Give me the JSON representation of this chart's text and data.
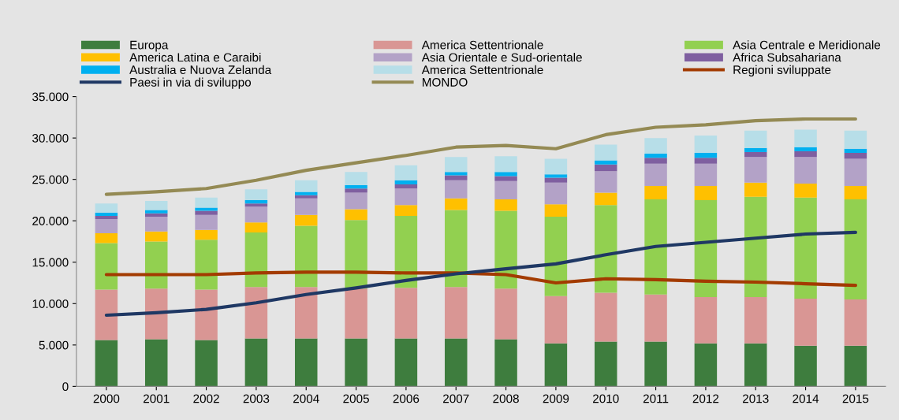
{
  "chart_data": {
    "type": "bar",
    "stacked": true,
    "legend": "top",
    "grid": false,
    "categories": [
      "2000",
      "2001",
      "2002",
      "2003",
      "2004",
      "2005",
      "2006",
      "2007",
      "2008",
      "2009",
      "2010",
      "2011",
      "2012",
      "2013",
      "2014",
      "2015"
    ],
    "ylim": [
      0,
      35000
    ],
    "yticks": [
      0,
      {
        "value": 5000,
        "label": "5.000"
      },
      {
        "value": 10000,
        "label": "10.000"
      },
      {
        "value": 15000,
        "label": "15.000"
      },
      {
        "value": 20000,
        "label": "20.000"
      },
      {
        "value": 25000,
        "label": "25.000"
      },
      {
        "value": 30000,
        "label": "30.000"
      },
      {
        "value": 35000,
        "label": "35.000"
      }
    ],
    "series": [
      {
        "name": "Europa",
        "color": "#3e7d3e",
        "values": [
          5600,
          5700,
          5600,
          5800,
          5800,
          5800,
          5800,
          5800,
          5700,
          5200,
          5400,
          5400,
          5200,
          5200,
          4900,
          4900
        ]
      },
      {
        "name": "America Settentrionale",
        "color": "#d99694",
        "values": [
          6100,
          6100,
          6100,
          6200,
          6200,
          6000,
          6100,
          6200,
          6100,
          5700,
          5900,
          5700,
          5600,
          5600,
          5700,
          5600
        ]
      },
      {
        "name": "Asia Centrale e Meridionale",
        "color": "#92d050",
        "values": [
          5600,
          5700,
          6000,
          6600,
          7400,
          8300,
          8700,
          9300,
          9400,
          9600,
          10600,
          11500,
          11700,
          12100,
          12200,
          12100
        ]
      },
      {
        "name": "America Latina e Caraibi",
        "color": "#ffc000",
        "values": [
          1200,
          1200,
          1200,
          1200,
          1300,
          1300,
          1300,
          1400,
          1400,
          1500,
          1500,
          1600,
          1700,
          1700,
          1700,
          1600
        ]
      },
      {
        "name": "Asia Orientale e Sud-orientale",
        "color": "#b3a2c7",
        "values": [
          1700,
          1800,
          1800,
          1900,
          2000,
          2000,
          2000,
          2200,
          2200,
          2600,
          2600,
          2700,
          2700,
          3100,
          3200,
          3300
        ]
      },
      {
        "name": "Africa Subsahariana",
        "color": "#7f5fa0",
        "values": [
          400,
          400,
          500,
          400,
          400,
          500,
          500,
          600,
          600,
          600,
          800,
          700,
          700,
          600,
          700,
          700
        ]
      },
      {
        "name": "Australia e Nuova Zelanda",
        "color": "#00b0f0",
        "values": [
          400,
          400,
          400,
          400,
          400,
          400,
          500,
          400,
          500,
          400,
          500,
          500,
          600,
          500,
          500,
          500
        ]
      },
      {
        "name": "America Settentrionale",
        "color": "#b7dee8",
        "values": [
          1100,
          1100,
          1200,
          1300,
          1400,
          1600,
          1800,
          1800,
          1900,
          1900,
          1900,
          1900,
          2100,
          2100,
          2100,
          2200
        ]
      },
      {
        "name": "Regioni sviluppate",
        "type": "line",
        "color": "#a33b00",
        "values": [
          13500,
          13500,
          13500,
          13700,
          13800,
          13800,
          13700,
          13700,
          13500,
          12500,
          13000,
          12900,
          12700,
          12600,
          12400,
          12200
        ]
      },
      {
        "name": "Paesi in via di sviluppo",
        "type": "line",
        "color": "#1f3864",
        "values": [
          8600,
          8900,
          9300,
          10100,
          11100,
          11900,
          12800,
          13600,
          14200,
          14800,
          15900,
          16900,
          17400,
          17900,
          18400,
          18600
        ]
      },
      {
        "name": "MONDO",
        "type": "line",
        "color": "#948a54",
        "values": [
          23200,
          23500,
          23900,
          24900,
          26100,
          27000,
          27900,
          28900,
          29100,
          28700,
          30400,
          31300,
          31600,
          32100,
          32300,
          32300
        ]
      }
    ]
  }
}
